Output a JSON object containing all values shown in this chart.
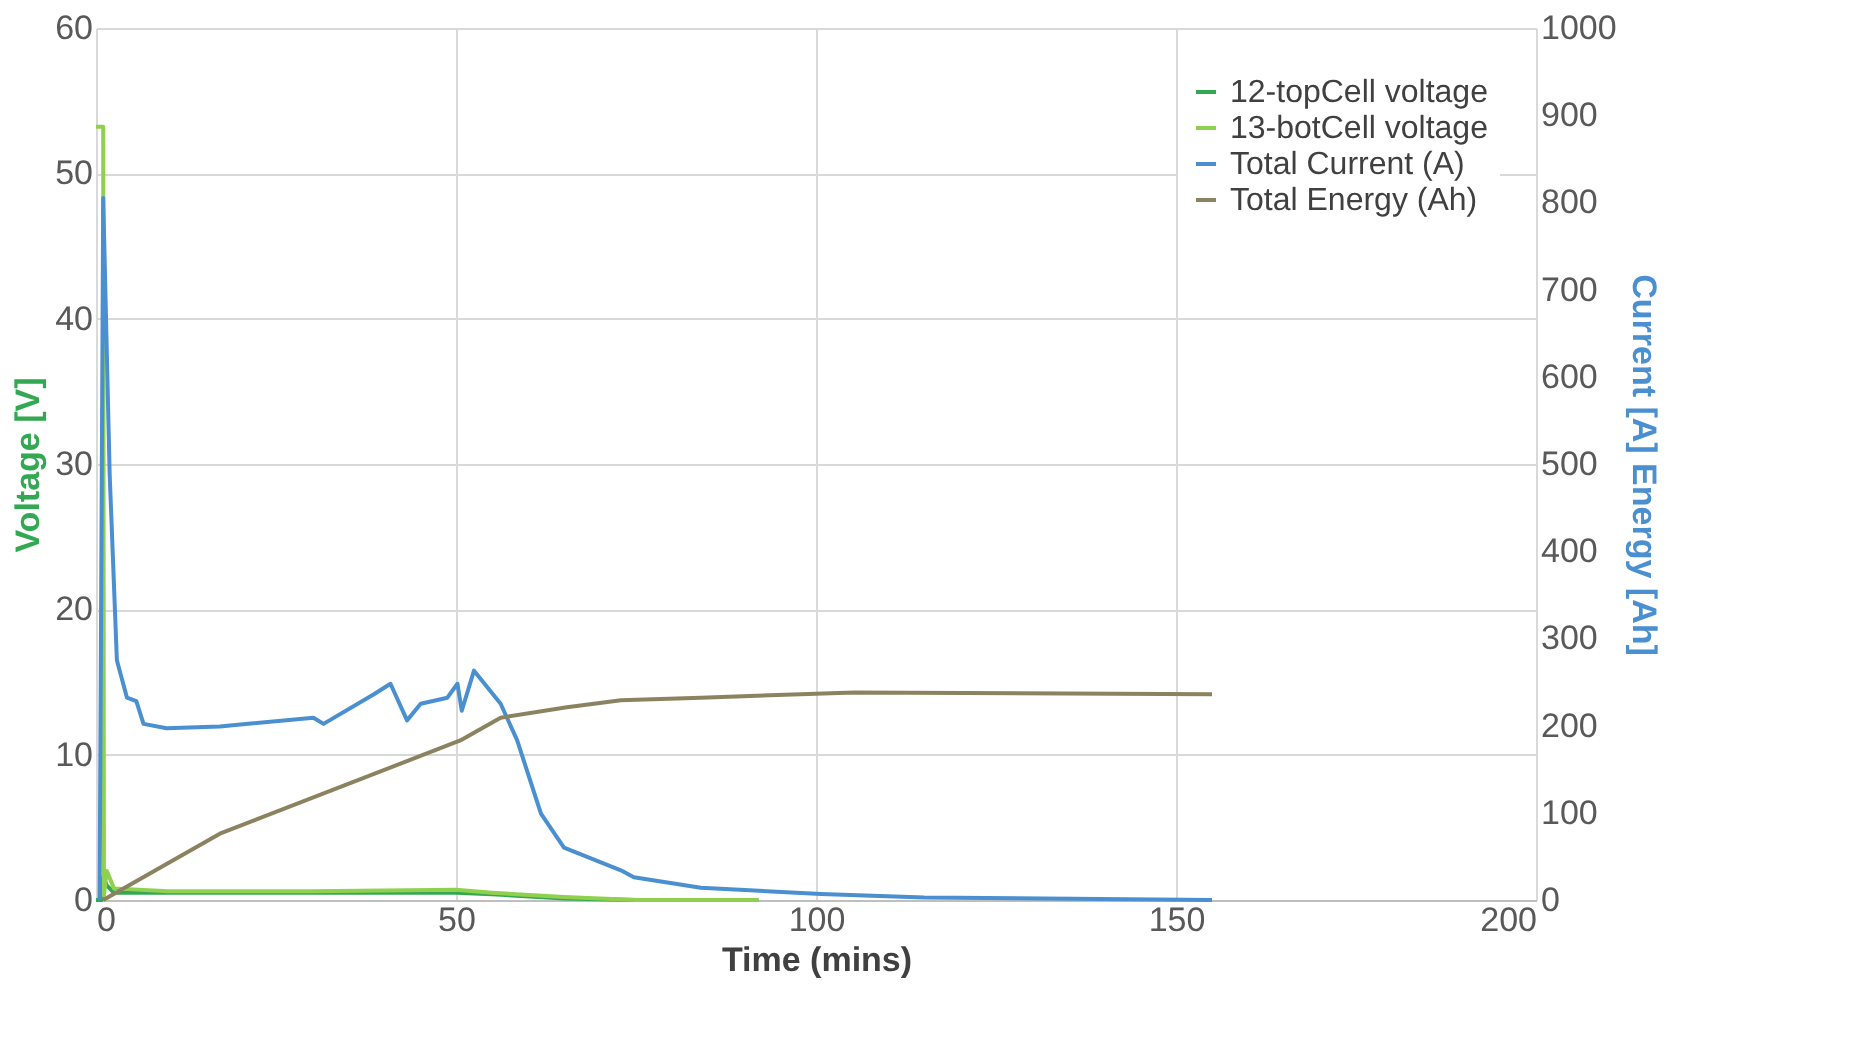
{
  "chart_data": {
    "type": "line",
    "xlabel": "Time (mins)",
    "ylabel": "Voltage [V]",
    "y2label": "Current [A] Energy [Ah]",
    "xlim": [
      0,
      200
    ],
    "xticks": [
      0,
      50,
      100,
      150,
      200
    ],
    "ylim": [
      0,
      60
    ],
    "yticks": [
      0,
      10,
      20,
      30,
      40,
      50,
      60
    ],
    "y2lim": [
      0,
      1000
    ],
    "y2ticks": [
      0,
      100,
      200,
      300,
      400,
      500,
      600,
      700,
      800,
      900,
      1000
    ],
    "grid": true,
    "legend": "top right",
    "marker": "none",
    "line_style": "solid",
    "series": [
      {
        "name": "12-topCell voltage",
        "color": "#33a853",
        "x": [
          0,
          0.8,
          1.0,
          1.5,
          2.5,
          10,
          30,
          50,
          55,
          65,
          75,
          92
        ],
        "values": [
          0,
          0,
          1.6,
          1.0,
          0.5,
          0.5,
          0.5,
          0.5,
          0.4,
          0.1,
          0,
          0
        ]
      },
      {
        "name": "13-botCell voltage",
        "color": "#8fd14f",
        "x": [
          0,
          1.0,
          1.1,
          1.5,
          2.5,
          10,
          30,
          50,
          55,
          65,
          75,
          92
        ],
        "values": [
          53.2,
          53.2,
          0.3,
          2.0,
          0.8,
          0.6,
          0.6,
          0.7,
          0.5,
          0.2,
          0,
          0
        ]
      },
      {
        "name": "Total Current (A)",
        "color": "#4a8fd0",
        "axis": "y2",
        "x": [
          0.5,
          1.0,
          1.9,
          2.9,
          4.3,
          5.6,
          6.6,
          9.8,
          17.2,
          30.2,
          31.6,
          38.6,
          40.9,
          43.2,
          45.1,
          48.8,
          50.2,
          50.8,
          52.5,
          56.2,
          58.5,
          61.8,
          65,
          72.9,
          74.7,
          84,
          100.7,
          115,
          155
        ],
        "values": [
          0,
          805,
          488,
          275,
          232,
          228,
          202,
          197,
          199,
          209,
          202,
          236,
          248,
          206,
          225,
          232,
          248,
          217,
          263,
          225,
          183,
          99,
          60,
          34,
          26,
          14,
          7,
          3,
          0
        ]
      },
      {
        "name": "Total Energy (Ah)",
        "color": "#8b8360",
        "axis": "y2",
        "x": [
          1,
          17.2,
          50.6,
          56.2,
          65.4,
          72.9,
          84,
          105.3,
          155
        ],
        "values": [
          0,
          76,
          183,
          209,
          221,
          229,
          232,
          238,
          236
        ]
      }
    ]
  }
}
